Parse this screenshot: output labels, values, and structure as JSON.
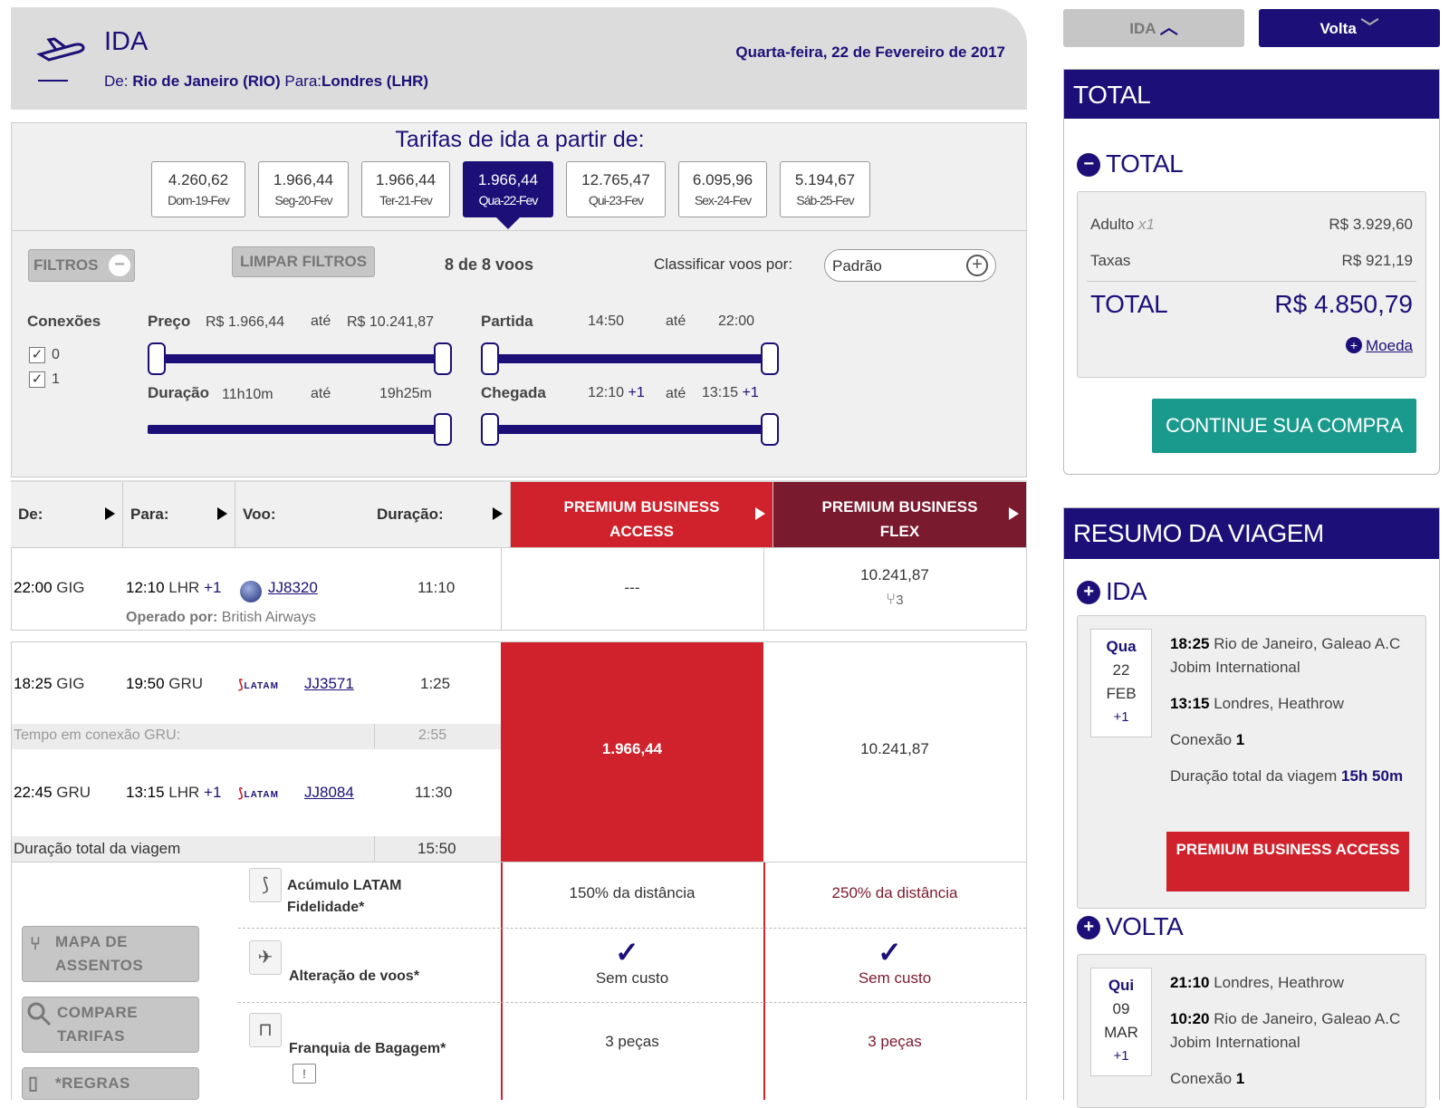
{
  "header": {
    "title": "IDA",
    "route_from_label": "De:",
    "route_from": "Rio de Janeiro (RIO)",
    "route_to_label": "Para:",
    "route_to": "Londres (LHR)",
    "date": "Quarta-feira, 22 de Fevereiro de 2017",
    "icon": "airplane-takeoff-icon"
  },
  "fares": {
    "title": "Tarifas de ida a partir de:",
    "days": [
      {
        "price": "4.260,62",
        "date": "Dom-19-Fev"
      },
      {
        "price": "1.966,44",
        "date": "Seg-20-Fev"
      },
      {
        "price": "1.966,44",
        "date": "Ter-21-Fev"
      },
      {
        "price": "1.966,44",
        "date": "Qua-22-Fev",
        "selected": true
      },
      {
        "price": "12.765,47",
        "date": "Qui-23-Fev"
      },
      {
        "price": "6.095,96",
        "date": "Sex-24-Fev"
      },
      {
        "price": "5.194,67",
        "date": "Sáb-25-Fev"
      }
    ]
  },
  "filters": {
    "filtros_label": "FILTROS",
    "limpar_label": "LIMPAR FILTROS",
    "count": "8 de 8 voos",
    "sort_label": "Classificar voos por:",
    "sort_value": "Padrão",
    "conexoes_label": "Conexões",
    "conexoes": [
      "0",
      "1"
    ],
    "preco_label": "Preço",
    "preco_min": "R$ 1.966,44",
    "ate": "até",
    "preco_max": "R$ 10.241,87",
    "duracao_label": "Duração",
    "duracao_min": "11h10m",
    "duracao_max": "19h25m",
    "partida_label": "Partida",
    "partida_min": "14:50",
    "partida_max": "22:00",
    "chegada_label": "Chegada",
    "chegada_min": "12:10",
    "chegada_max": "13:15",
    "plus_one": "+1"
  },
  "table": {
    "headers": {
      "de": "De:",
      "para": "Para:",
      "voo": "Voo:",
      "duracao": "Duração:",
      "cabin1": "PREMIUM BUSINESS ACCESS",
      "cabin2": "PREMIUM BUSINESS FLEX"
    },
    "flight1": {
      "dep_time": "22:00",
      "dep_code": "GIG",
      "arr_time": "12:10",
      "arr_code": "LHR",
      "plus": "+1",
      "flight": "JJ8320",
      "duration": "11:10",
      "operated_label": "Operado por:",
      "operated": "British Airways",
      "price1": "---",
      "price2": "10.241,87",
      "seats": "3"
    },
    "flight2": {
      "seg1": {
        "dep_time": "18:25",
        "dep_code": "GIG",
        "arr_time": "19:50",
        "arr_code": "GRU",
        "flight": "JJ3571",
        "duration": "1:25"
      },
      "connection_label": "Tempo em conexão GRU:",
      "connection_time": "2:55",
      "seg2": {
        "dep_time": "22:45",
        "dep_code": "GRU",
        "arr_time": "13:15",
        "arr_code": "LHR",
        "plus": "+1",
        "flight": "JJ8084",
        "duration": "11:30"
      },
      "total_label": "Duração total da viagem",
      "total_time": "15:50",
      "price1": "1.966,44",
      "price2": "10.241,87",
      "airline": "LATAM"
    }
  },
  "benefits": [
    {
      "label": "Acúmulo LATAM Fidelidade*",
      "v1": "150% da distância",
      "v2": "250% da distância"
    },
    {
      "label": "Alteração de voos*",
      "v1": "Sem custo",
      "v2": "Sem custo"
    },
    {
      "label": "Franquia de Bagagem*",
      "v1": "3 peças",
      "v2": "3 peças"
    }
  ],
  "side_buttons": {
    "mapa": "MAPA DE ASSENTOS",
    "compare": "COMPARE TARIFAS",
    "regras": "*REGRAS"
  },
  "right": {
    "ida_btn": "IDA",
    "volta_btn": "Volta",
    "total_header": "TOTAL",
    "total_section": "TOTAL",
    "adulto_label": "Adulto",
    "adulto_qty": "x1",
    "adulto_value": "R$ 3.929,60",
    "taxas_label": "Taxas",
    "taxas_value": "R$ 921,19",
    "total_label": "TOTAL",
    "total_value": "R$ 4.850,79",
    "moeda": "Moeda",
    "continue": "CONTINUE SUA COMPRA",
    "resumo_header": "RESUMO DA VIAGEM",
    "ida": {
      "title": "IDA",
      "dow": "Qua",
      "day": "22",
      "month": "FEB",
      "plus": "+1",
      "dep_time": "18:25",
      "dep_place": "Rio de Janeiro, Galeao A.C Jobim International",
      "arr_time": "13:15",
      "arr_place": "Londres, Heathrow",
      "conexao_label": "Conexão",
      "conexao": "1",
      "dur_label": "Duração total da viagem",
      "dur": "15h 50m",
      "cabin": "PREMIUM BUSINESS ACCESS"
    },
    "volta": {
      "title": "VOLTA",
      "dow": "Qui",
      "day": "09",
      "month": "MAR",
      "plus": "+1",
      "dep_time": "21:10",
      "dep_place": "Londres, Heathrow",
      "arr_time": "10:20",
      "arr_place": "Rio de Janeiro, Galeao A.C Jobim International",
      "conexao_label": "Conexão",
      "conexao": "1"
    }
  },
  "colors": {
    "navy": "#1c1078",
    "red": "#d0222c",
    "dark_red": "#7a1a2e",
    "teal": "#1a9a8c"
  }
}
